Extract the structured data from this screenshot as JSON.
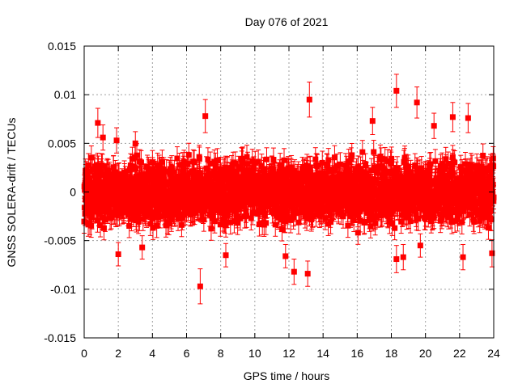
{
  "chart_data": {
    "type": "scatter",
    "title": "Day 076 of 2021",
    "xlabel": "GPS time / hours",
    "ylabel": "GNSS SOLERA-drift / TECUs",
    "xlim": [
      0,
      24
    ],
    "ylim": [
      -0.015,
      0.015
    ],
    "x_ticks": [
      "0",
      "2",
      "4",
      "6",
      "8",
      "10",
      "12",
      "14",
      "16",
      "18",
      "20",
      "22",
      "24"
    ],
    "y_ticks": [
      "-0.015",
      "-0.01",
      "-0.005",
      "0",
      "0.005",
      "0.01",
      "0.015"
    ],
    "grid": true,
    "legend": "none",
    "series_color": "#ff0000",
    "marker": "square with error bars",
    "series": [
      {
        "points": [
          {
            "x": 0.8,
            "y": 0.0071,
            "err": 0.0015
          },
          {
            "x": 1.1,
            "y": 0.0056,
            "err": 0.0013
          },
          {
            "x": 1.9,
            "y": 0.0053,
            "err": 0.0013
          },
          {
            "x": 3.0,
            "y": 0.005,
            "err": 0.0012
          },
          {
            "x": 6.8,
            "y": -0.0097,
            "err": 0.0018
          },
          {
            "x": 7.1,
            "y": 0.0078,
            "err": 0.0017
          },
          {
            "x": 2.0,
            "y": -0.0064,
            "err": 0.0012
          },
          {
            "x": 3.4,
            "y": -0.0057,
            "err": 0.0012
          },
          {
            "x": 8.3,
            "y": -0.0065,
            "err": 0.0012
          },
          {
            "x": 11.8,
            "y": -0.0066,
            "err": 0.0012
          },
          {
            "x": 12.3,
            "y": -0.0082,
            "err": 0.0013
          },
          {
            "x": 13.1,
            "y": -0.0084,
            "err": 0.0013
          },
          {
            "x": 13.2,
            "y": 0.0095,
            "err": 0.0018
          },
          {
            "x": 16.9,
            "y": 0.0073,
            "err": 0.0014
          },
          {
            "x": 18.3,
            "y": 0.0104,
            "err": 0.0017
          },
          {
            "x": 18.3,
            "y": -0.0069,
            "err": 0.0014
          },
          {
            "x": 18.7,
            "y": -0.0067,
            "err": 0.0013
          },
          {
            "x": 19.5,
            "y": 0.0092,
            "err": 0.0016
          },
          {
            "x": 19.7,
            "y": -0.0055,
            "err": 0.0012
          },
          {
            "x": 20.5,
            "y": 0.0068,
            "err": 0.0013
          },
          {
            "x": 21.6,
            "y": 0.0077,
            "err": 0.0015
          },
          {
            "x": 22.5,
            "y": 0.0076,
            "err": 0.0015
          },
          {
            "x": 22.2,
            "y": -0.0067,
            "err": 0.0013
          },
          {
            "x": 23.9,
            "y": -0.0063,
            "err": 0.0014
          },
          {
            "x": 1.0,
            "y": 0.0021,
            "err": 0.0013
          },
          {
            "x": 2.1,
            "y": -0.0014,
            "err": 0.0013
          },
          {
            "x": 3.2,
            "y": 0.0009,
            "err": 0.0013
          },
          {
            "x": 4.3,
            "y": -0.0023,
            "err": 0.0013
          },
          {
            "x": 5.5,
            "y": 0.0016,
            "err": 0.0013
          },
          {
            "x": 6.6,
            "y": -0.0008,
            "err": 0.0013
          },
          {
            "x": 7.7,
            "y": 0.0027,
            "err": 0.0013
          },
          {
            "x": 8.8,
            "y": -0.0019,
            "err": 0.0013
          },
          {
            "x": 9.9,
            "y": 0.0004,
            "err": 0.0013
          },
          {
            "x": 11.0,
            "y": 0.0024,
            "err": 0.0013
          },
          {
            "x": 12.1,
            "y": -0.0029,
            "err": 0.0013
          },
          {
            "x": 13.3,
            "y": 0.0012,
            "err": 0.0013
          },
          {
            "x": 14.4,
            "y": -0.0011,
            "err": 0.0013
          },
          {
            "x": 15.5,
            "y": 0.0031,
            "err": 0.0013
          },
          {
            "x": 16.6,
            "y": -0.0021,
            "err": 0.0013
          },
          {
            "x": 17.7,
            "y": 0.0006,
            "err": 0.0013
          },
          {
            "x": 18.9,
            "y": 0.0019,
            "err": 0.0013
          },
          {
            "x": 20.0,
            "y": -0.0026,
            "err": 0.0013
          },
          {
            "x": 21.1,
            "y": 0.0014,
            "err": 0.0013
          },
          {
            "x": 22.2,
            "y": -0.0005,
            "err": 0.0013
          },
          {
            "x": 23.3,
            "y": 0.0023,
            "err": 0.0013
          }
        ]
      }
    ],
    "dense_band": {
      "x_range": [
        0,
        24
      ],
      "y_center": 0,
      "y_spread": 0.0045
    }
  }
}
